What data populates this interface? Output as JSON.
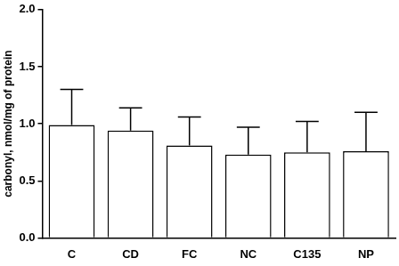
{
  "chart_data": {
    "type": "bar",
    "y_label": "carbonyl, nmol/mg of protein",
    "categories": [
      "C",
      "CD",
      "FC",
      "NC",
      "C135",
      "NP"
    ],
    "values": [
      0.99,
      0.94,
      0.81,
      0.73,
      0.75,
      0.76
    ],
    "errors": [
      0.31,
      0.2,
      0.25,
      0.24,
      0.27,
      0.34
    ],
    "color": "#ffffff",
    "ylim": [
      0,
      2.0
    ],
    "yticks": [
      {
        "value": 0,
        "label": "0.0"
      },
      0.5,
      {
        "value": 1.0,
        "label": "1.0"
      },
      1.5,
      {
        "value": 2.0,
        "label": "2.0"
      }
    ],
    "grid": false
  }
}
